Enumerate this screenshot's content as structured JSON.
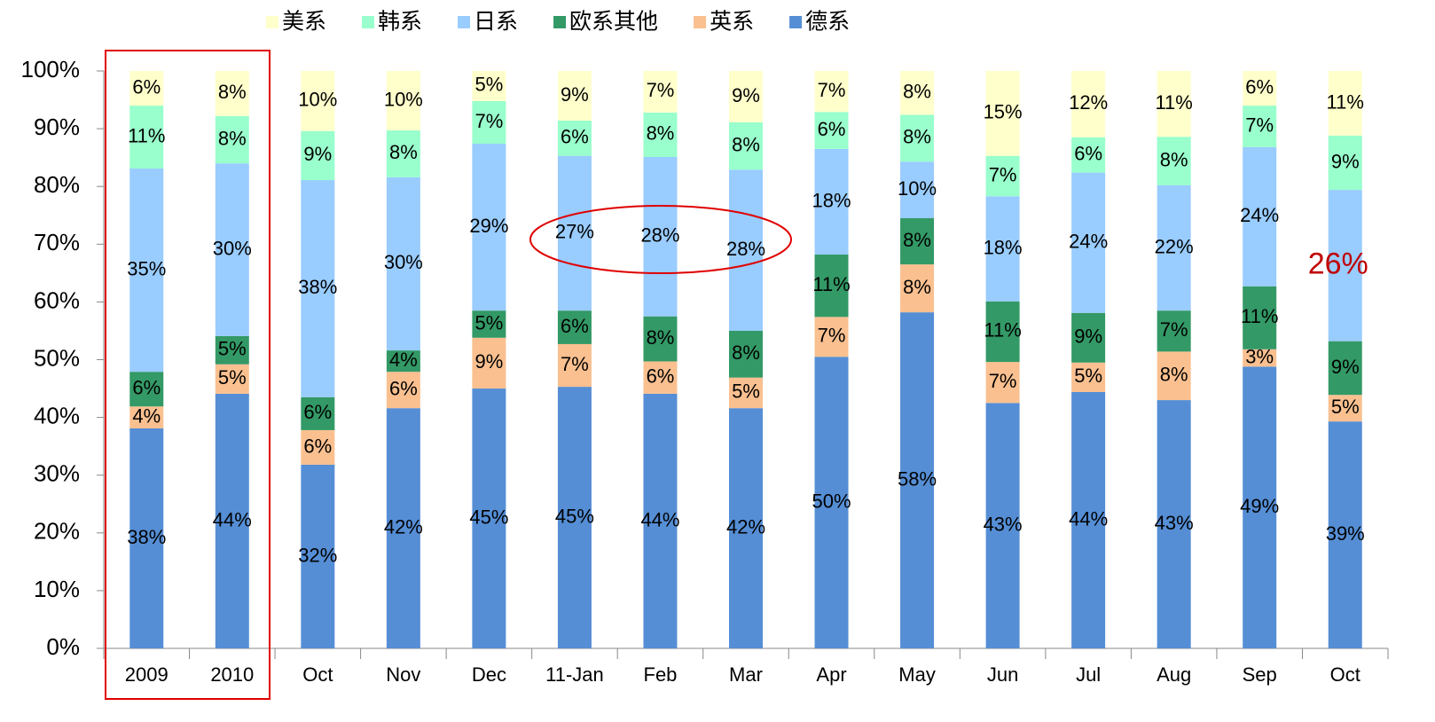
{
  "chart_data": {
    "type": "stacked_bar",
    "categories": [
      "2009",
      "2010",
      "Oct",
      "Nov",
      "Dec",
      "11-Jan",
      "Feb",
      "Mar",
      "Apr",
      "May",
      "Jun",
      "Jul",
      "Aug",
      "Sep",
      "Oct"
    ],
    "ylim": [
      0,
      100
    ],
    "yticks": [
      {
        "value": 0,
        "label": "0%"
      },
      {
        "value": 10,
        "label": "10%"
      },
      {
        "value": 20,
        "label": "20%"
      },
      {
        "value": 30,
        "label": "30%"
      },
      {
        "value": 40,
        "label": "40%"
      },
      {
        "value": 50,
        "label": "50%"
      },
      {
        "value": 60,
        "label": "60%"
      },
      {
        "value": 70,
        "label": "70%"
      },
      {
        "value": 80,
        "label": "80%"
      },
      {
        "value": 90,
        "label": "90%"
      },
      {
        "value": 100,
        "label": "100%"
      }
    ],
    "legend_position": "top",
    "series": [
      {
        "name": "德系",
        "color": "#558ed5",
        "values": [
          38.1,
          44.1,
          31.8,
          41.6,
          45.0,
          45.3,
          44.1,
          41.6,
          50.5,
          58.2,
          42.5,
          44.4,
          43.0,
          48.8,
          39.3
        ],
        "value_labels": [
          "38%",
          "44%",
          "32%",
          "42%",
          "45%",
          "45%",
          "44%",
          "42%",
          "50%",
          "58%",
          "43%",
          "44%",
          "43%",
          "49%",
          "39%"
        ]
      },
      {
        "name": "英系",
        "color": "#fac090",
        "values": [
          3.8,
          5.1,
          6.0,
          6.3,
          8.8,
          7.4,
          5.6,
          5.3,
          6.9,
          8.3,
          7.1,
          5.1,
          8.4,
          3.0,
          4.6
        ],
        "value_labels": [
          "4%",
          "5%",
          "6%",
          "6%",
          "9%",
          "7%",
          "6%",
          "5%",
          "7%",
          "8%",
          "7%",
          "5%",
          "8%",
          "3%",
          "5%"
        ]
      },
      {
        "name": "欧系其他",
        "color": "#339966",
        "values": [
          6.0,
          4.9,
          5.7,
          3.7,
          4.7,
          5.8,
          7.8,
          8.1,
          10.8,
          8.0,
          10.5,
          8.6,
          7.1,
          10.9,
          9.3
        ],
        "value_labels": [
          "6%",
          "5%",
          "6%",
          "4%",
          "5%",
          "6%",
          "8%",
          "8%",
          "11%",
          "8%",
          "11%",
          "9%",
          "7%",
          "11%",
          "9%"
        ]
      },
      {
        "name": "日系",
        "color": "#99ccff",
        "values": [
          35.2,
          29.9,
          37.6,
          30.0,
          28.9,
          26.8,
          27.6,
          27.9,
          18.3,
          9.8,
          18.2,
          24.3,
          21.7,
          24.1,
          26.2
        ],
        "value_labels": [
          "35%",
          "30%",
          "38%",
          "30%",
          "29%",
          "27%",
          "28%",
          "28%",
          "18%",
          "10%",
          "18%",
          "24%",
          "22%",
          "24%",
          "26%"
        ]
      },
      {
        "name": "韩系",
        "color": "#99ffcc",
        "values": [
          10.9,
          8.2,
          8.5,
          8.1,
          7.4,
          6.1,
          7.7,
          8.2,
          6.4,
          8.1,
          7.0,
          6.1,
          8.4,
          7.2,
          9.4
        ],
        "value_labels": [
          "11%",
          "8%",
          "9%",
          "8%",
          "7%",
          "6%",
          "8%",
          "8%",
          "6%",
          "8%",
          "7%",
          "6%",
          "8%",
          "7%",
          "9%"
        ]
      },
      {
        "name": "美系",
        "color": "#ffffcc",
        "values": [
          6.0,
          7.8,
          10.4,
          10.3,
          5.2,
          8.6,
          7.2,
          8.9,
          7.1,
          7.6,
          14.7,
          11.5,
          11.4,
          6.0,
          11.2
        ],
        "value_labels": [
          "6%",
          "8%",
          "10%",
          "10%",
          "5%",
          "9%",
          "7%",
          "9%",
          "7%",
          "8%",
          "15%",
          "12%",
          "11%",
          "6%",
          "11%"
        ]
      }
    ]
  }
}
